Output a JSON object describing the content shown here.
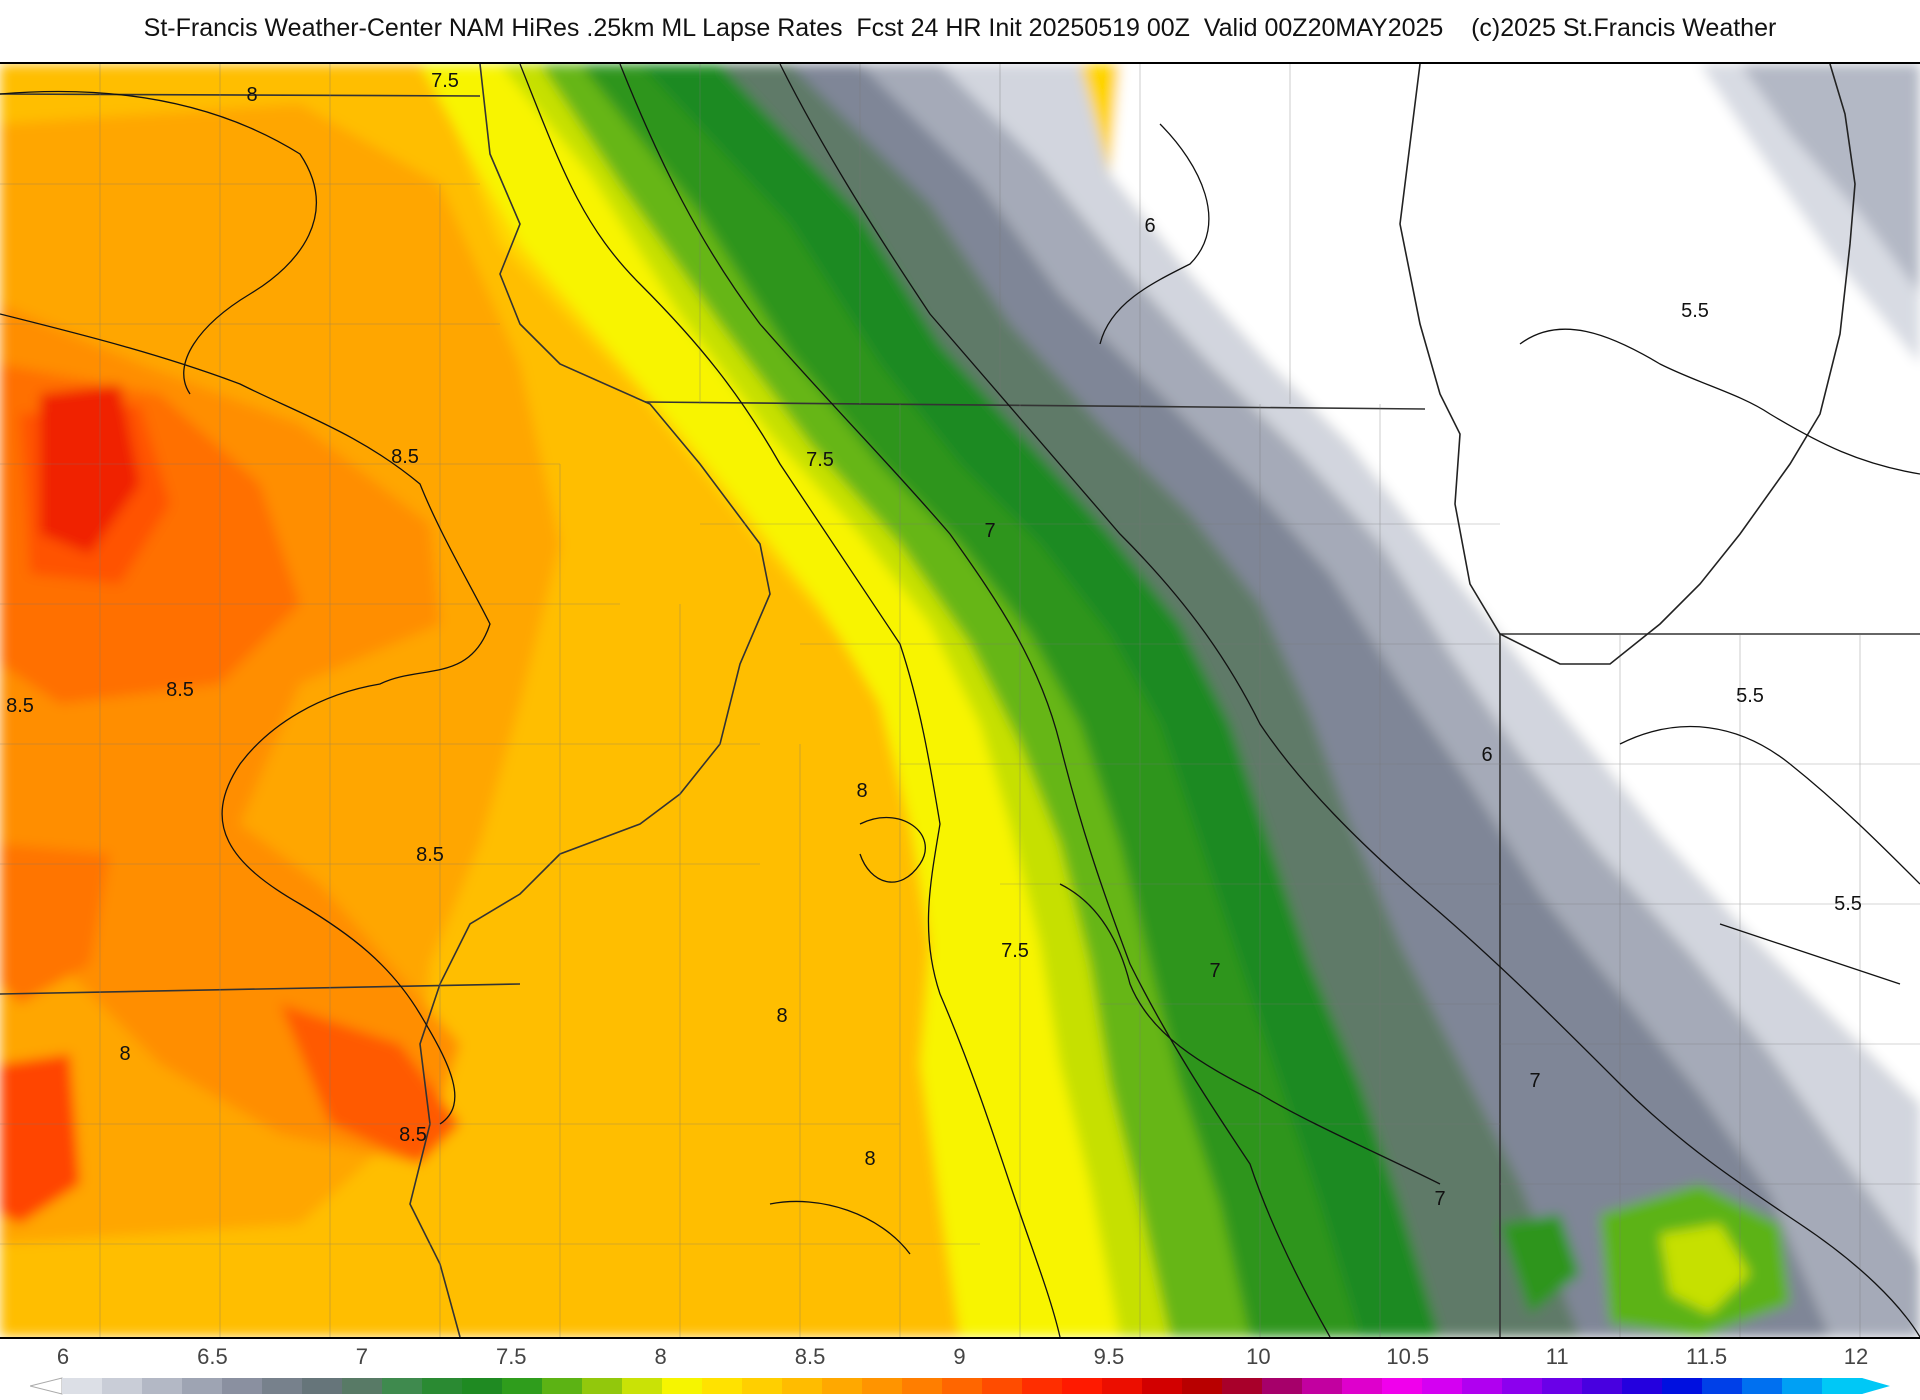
{
  "header": {
    "title": "St-Francis Weather-Center NAM HiRes .25km ML Lapse Rates  Fcst 24 HR Init 20250519 00Z  Valid 00Z20MAY2025    (c)2025 St.Francis Weather"
  },
  "legend": {
    "ticks": [
      "6",
      "6.5",
      "7",
      "7.5",
      "8",
      "8.5",
      "9",
      "9.5",
      "10",
      "10.5",
      "11",
      "11.5",
      "12"
    ],
    "min": 6,
    "max": 12,
    "colors": [
      "#dcdfe6",
      "#c9cdd7",
      "#b3b8c5",
      "#9ea4b3",
      "#8a90a0",
      "#77818c",
      "#66757a",
      "#587a66",
      "#3f8a4e",
      "#2a8a32",
      "#1f8a22",
      "#2f9d1c",
      "#5cb314",
      "#92c80c",
      "#c9e206",
      "#f6f500",
      "#ffe200",
      "#ffcf00",
      "#ffbc00",
      "#ffa800",
      "#ff9400",
      "#ff7e00",
      "#ff6600",
      "#ff4c00",
      "#ff2e00",
      "#ff1a00",
      "#ec0e00",
      "#d20000",
      "#b80000",
      "#a8002a",
      "#a6006a",
      "#c200a0",
      "#de00cc",
      "#f000ec",
      "#d400f2",
      "#b000f0",
      "#8c00ee",
      "#6a00e8",
      "#4800e0",
      "#2400de",
      "#0010e0",
      "#0040e8",
      "#0070f0",
      "#00a0f4",
      "#00c8f6"
    ]
  },
  "contour_labels": [
    {
      "text": "8"
    },
    {
      "text": "7.5"
    },
    {
      "text": "8.5"
    },
    {
      "text": "8.5"
    },
    {
      "text": "8.5"
    },
    {
      "text": "8.5"
    },
    {
      "text": "8.5"
    },
    {
      "text": "8"
    },
    {
      "text": "7.5"
    },
    {
      "text": "7"
    },
    {
      "text": "8"
    },
    {
      "text": "7.5"
    },
    {
      "text": "8"
    },
    {
      "text": "8"
    },
    {
      "text": "7"
    },
    {
      "text": "7"
    },
    {
      "text": "7"
    },
    {
      "text": "6"
    },
    {
      "text": "5.5"
    },
    {
      "text": "6"
    },
    {
      "text": "5.5"
    },
    {
      "text": "5.5"
    }
  ]
}
